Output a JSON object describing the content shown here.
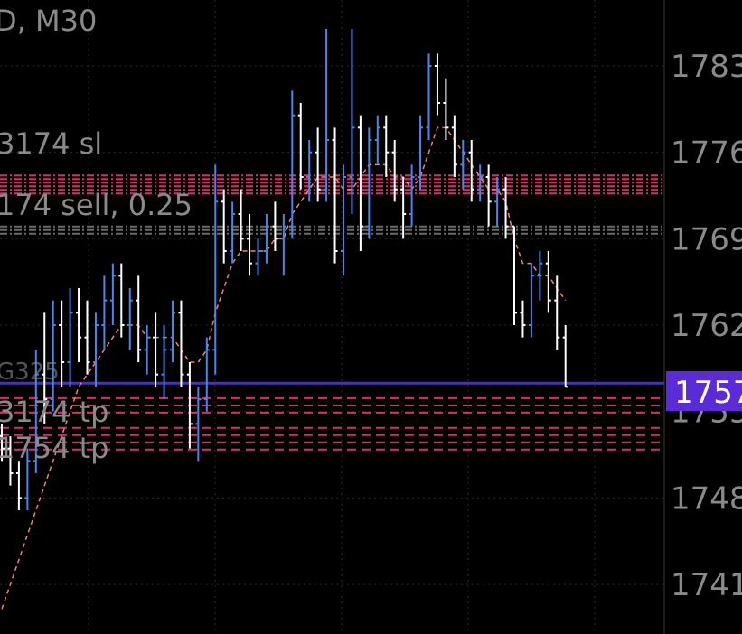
{
  "header": {
    "symbol_timeframe": "D, M30"
  },
  "colors": {
    "background": "#000000",
    "bar_up": "#4a86e8",
    "bar_down": "#ffffff",
    "moving_average": "#f08080",
    "order_level": "#d62f6a",
    "grid": "#2a2a2a",
    "bid_line": "#4b2ad6",
    "price_tag": "#5a2bd6"
  },
  "order_labels": [
    {
      "text": "3174 sl"
    },
    {
      "text": "174 sell, 0.25"
    },
    {
      "text": "3174 tp"
    },
    {
      "text": "1754 tp"
    },
    {
      "text": "G325"
    }
  ],
  "price_axis": {
    "labels": [
      "1783",
      "1776",
      "1769",
      "1762",
      "1755",
      "1748",
      "1741"
    ]
  },
  "current_price": {
    "label": "1757"
  },
  "chart_data": {
    "type": "ohlc",
    "title": "",
    "timeframe": "M30",
    "ylim": [
      1737.5,
      1787.5
    ],
    "y_ticks": [
      1783,
      1776,
      1769,
      1762,
      1755,
      1748,
      1741
    ],
    "current_price": 1757.3,
    "grid": true,
    "order_levels": [
      {
        "name": "sl",
        "price": 1773.4
      },
      {
        "name": "sell, 0.25",
        "price": 1769.7
      },
      {
        "name": "tp",
        "price": 1755.5
      },
      {
        "name": "tp",
        "price": 1752.8
      }
    ],
    "bars": [
      [
        1753,
        1754,
        1751,
        1752
      ],
      [
        1752,
        1753,
        1749,
        1750
      ],
      [
        1750,
        1751,
        1747,
        1748
      ],
      [
        1748,
        1752,
        1747,
        1751
      ],
      [
        1751,
        1760,
        1750,
        1758
      ],
      [
        1758,
        1763,
        1754,
        1756
      ],
      [
        1756,
        1764,
        1755,
        1762
      ],
      [
        1762,
        1764,
        1757,
        1759
      ],
      [
        1759,
        1765,
        1757,
        1763
      ],
      [
        1763,
        1765,
        1759,
        1761
      ],
      [
        1761,
        1764,
        1758,
        1759
      ],
      [
        1759,
        1763,
        1757,
        1762
      ],
      [
        1762,
        1766,
        1760,
        1764
      ],
      [
        1764,
        1767,
        1762,
        1766
      ],
      [
        1766,
        1767,
        1761,
        1762
      ],
      [
        1762,
        1765,
        1760,
        1764
      ],
      [
        1764,
        1766,
        1759,
        1760
      ],
      [
        1760,
        1762,
        1758,
        1761
      ],
      [
        1761,
        1763,
        1757,
        1758
      ],
      [
        1758,
        1762,
        1756,
        1760
      ],
      [
        1760,
        1764,
        1759,
        1763
      ],
      [
        1763,
        1764,
        1757,
        1758
      ],
      [
        1758,
        1759,
        1752,
        1754
      ],
      [
        1754,
        1757,
        1751,
        1756
      ],
      [
        1756,
        1761,
        1755,
        1760
      ],
      [
        1760,
        1775,
        1758,
        1772
      ],
      [
        1772,
        1773,
        1767,
        1768
      ],
      [
        1768,
        1772,
        1767,
        1771
      ],
      [
        1771,
        1773,
        1768,
        1769
      ],
      [
        1769,
        1771,
        1766,
        1767
      ],
      [
        1767,
        1769,
        1766,
        1768
      ],
      [
        1768,
        1771,
        1767,
        1770
      ],
      [
        1770,
        1772,
        1768,
        1769
      ],
      [
        1769,
        1771,
        1766,
        1770
      ],
      [
        1770,
        1781,
        1769,
        1779
      ],
      [
        1779,
        1780,
        1773,
        1774
      ],
      [
        1774,
        1777,
        1772,
        1776
      ],
      [
        1776,
        1778,
        1772,
        1773
      ],
      [
        1773,
        1786,
        1772,
        1777
      ],
      [
        1777,
        1778,
        1767,
        1768
      ],
      [
        1768,
        1775,
        1766,
        1774
      ],
      [
        1774,
        1786,
        1771,
        1778
      ],
      [
        1778,
        1779,
        1768,
        1770
      ],
      [
        1770,
        1778,
        1769,
        1777
      ],
      [
        1777,
        1779,
        1775,
        1778
      ],
      [
        1778,
        1779,
        1774,
        1776
      ],
      [
        1776,
        1777,
        1772,
        1773
      ],
      [
        1773,
        1774,
        1769,
        1771
      ],
      [
        1771,
        1775,
        1770,
        1774
      ],
      [
        1774,
        1779,
        1773,
        1778
      ],
      [
        1778,
        1784,
        1777,
        1783
      ],
      [
        1783,
        1784,
        1779,
        1780
      ],
      [
        1780,
        1782,
        1777,
        1778
      ],
      [
        1778,
        1779,
        1774,
        1775
      ],
      [
        1775,
        1777,
        1773,
        1776
      ],
      [
        1776,
        1777,
        1772,
        1773
      ],
      [
        1773,
        1775,
        1772,
        1774
      ],
      [
        1774,
        1775,
        1770,
        1772
      ],
      [
        1772,
        1774,
        1770,
        1773
      ],
      [
        1773,
        1774,
        1769,
        1770
      ],
      [
        1770,
        1770,
        1762,
        1763
      ],
      [
        1763,
        1764,
        1761,
        1762
      ],
      [
        1762,
        1767,
        1761,
        1766
      ],
      [
        1766,
        1768,
        1764,
        1767
      ],
      [
        1767,
        1768,
        1763,
        1764
      ],
      [
        1764,
        1766,
        1760,
        1761
      ],
      [
        1761,
        1762,
        1757,
        1757
      ]
    ],
    "moving_average": [
      1739,
      1741,
      1743,
      1745,
      1747,
      1749,
      1751,
      1753,
      1755,
      1757,
      1758,
      1759,
      1760,
      1761,
      1762,
      1762,
      1762,
      1761,
      1761,
      1761,
      1761,
      1760,
      1759,
      1759,
      1760,
      1763,
      1765,
      1767,
      1768,
      1768,
      1768,
      1768,
      1769,
      1769,
      1771,
      1772,
      1773,
      1774,
      1774,
      1774,
      1773,
      1773,
      1774,
      1775,
      1775,
      1775,
      1774,
      1774,
      1773,
      1774,
      1776,
      1778,
      1778,
      1777,
      1776,
      1775,
      1774,
      1773,
      1773,
      1772,
      1769,
      1767,
      1767,
      1766,
      1766,
      1765,
      1764
    ]
  }
}
